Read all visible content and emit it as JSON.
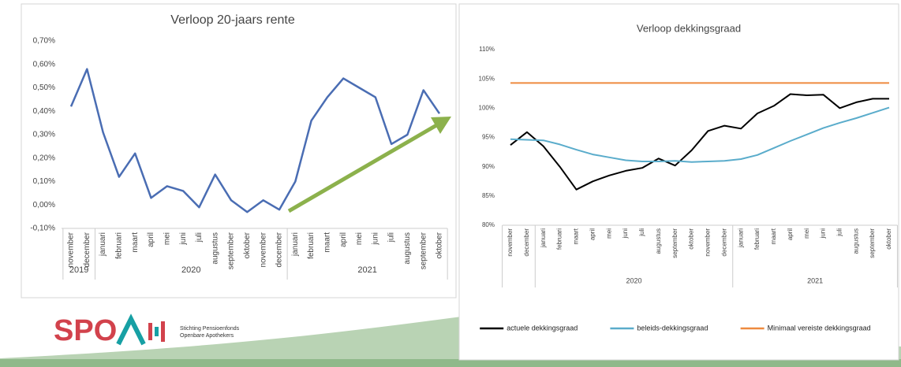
{
  "chart_data": [
    {
      "type": "line",
      "title": "Verloop 20-jaars rente",
      "categories": [
        "november",
        "december",
        "januari",
        "februari",
        "maart",
        "april",
        "mei",
        "juni",
        "juli",
        "augustus",
        "september",
        "oktober",
        "november",
        "december",
        "januari",
        "februari",
        "maart",
        "april",
        "mei",
        "juni",
        "juli",
        "augustus",
        "september",
        "oktober"
      ],
      "groups": [
        {
          "label": "2019",
          "size": 2
        },
        {
          "label": "2020",
          "size": 12
        },
        {
          "label": "2021",
          "size": 10
        }
      ],
      "series": [
        {
          "name": null,
          "color": "#4a6db3",
          "values": [
            0.42,
            0.58,
            0.31,
            0.12,
            0.22,
            0.03,
            0.08,
            0.06,
            -0.01,
            0.13,
            0.02,
            -0.03,
            0.02,
            -0.02,
            0.1,
            0.36,
            0.46,
            0.54,
            0.5,
            0.46,
            0.26,
            0.3,
            0.49,
            0.39
          ]
        }
      ],
      "ylim": [
        -0.1,
        0.7
      ],
      "yticks": [
        {
          "value": -0.1,
          "label": "-0,10%"
        },
        {
          "value": 0,
          "label": "0,00%"
        },
        {
          "value": 0.1,
          "label": "0,10%"
        },
        {
          "value": 0.2,
          "label": "0,20%"
        },
        {
          "value": 0.3,
          "label": "0,30%"
        },
        {
          "value": 0.4,
          "label": "0,40%"
        },
        {
          "value": 0.5,
          "label": "0,50%"
        },
        {
          "value": 0.6,
          "label": "0,60%"
        },
        {
          "value": 0.7,
          "label": "0,70%"
        }
      ],
      "grid": false
    },
    {
      "type": "line",
      "title": "Verloop dekkingsgraad",
      "categories": [
        "november",
        "december",
        "januari",
        "februari",
        "maart",
        "april",
        "mei",
        "juni",
        "juli",
        "augustus",
        "september",
        "oktober",
        "november",
        "december",
        "januari",
        "februari",
        "maart",
        "april",
        "mei",
        "juni",
        "juli",
        "augustus",
        "september",
        "oktober"
      ],
      "groups": [
        {
          "label": null,
          "size": 2
        },
        {
          "label": "2020",
          "size": 12
        },
        {
          "label": "2021",
          "size": 10
        }
      ],
      "series": [
        {
          "name": "actuele dekkingsgraad",
          "color": "#000000",
          "values": [
            93.7,
            95.9,
            93.5,
            90.0,
            86.1,
            87.5,
            88.5,
            89.3,
            89.8,
            91.4,
            90.2,
            92.8,
            96.1,
            97.0,
            96.5,
            99.1,
            100.4,
            102.4,
            102.2,
            102.3,
            100.0,
            101.0,
            101.6,
            101.6
          ]
        },
        {
          "name": "beleids-dekkingsgraad",
          "color": "#5aaccb",
          "values": [
            94.7,
            94.6,
            94.5,
            93.8,
            92.9,
            92.1,
            91.6,
            91.1,
            90.9,
            90.9,
            91.0,
            90.8,
            90.9,
            91.0,
            91.3,
            92.0,
            93.2,
            94.4,
            95.5,
            96.6,
            97.5,
            98.3,
            99.2,
            100.1
          ]
        },
        {
          "name": "Minimaal vereiste dekkingsgraad",
          "color": "#ee8a3f",
          "values": [
            104.3,
            104.3,
            104.3,
            104.3,
            104.3,
            104.3,
            104.3,
            104.3,
            104.3,
            104.3,
            104.3,
            104.3,
            104.3,
            104.3,
            104.3,
            104.3,
            104.3,
            104.3,
            104.3,
            104.3,
            104.3,
            104.3,
            104.3,
            104.3
          ]
        }
      ],
      "ylim": [
        80,
        110
      ],
      "yticks": [
        {
          "value": 80,
          "label": "80%"
        },
        {
          "value": 85,
          "label": "85%"
        },
        {
          "value": 90,
          "label": "90%"
        },
        {
          "value": 95,
          "label": "95%"
        },
        {
          "value": 100,
          "label": "100%"
        },
        {
          "value": 105,
          "label": "105%"
        },
        {
          "value": 110,
          "label": "110%"
        }
      ],
      "grid": false,
      "legend": "bottom"
    }
  ],
  "logo": {
    "name": "SPO",
    "line1": "Stichting Pensioenfonds",
    "line2": "Openbare Apothekers"
  }
}
